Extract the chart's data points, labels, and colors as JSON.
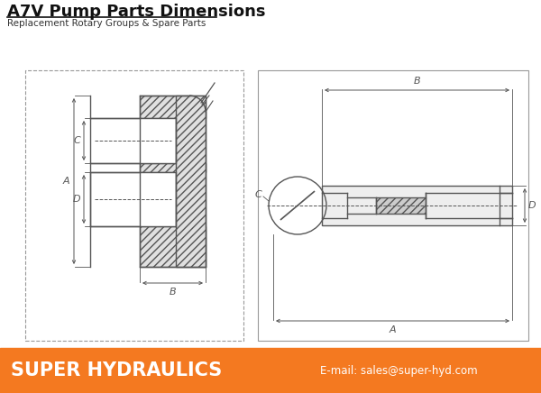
{
  "title": "A7V Pump Parts Dimensions",
  "subtitle": "Replacement Rotary Groups & Spare Parts",
  "bg_color": "#ffffff",
  "orange_color": "#F47920",
  "footer_text": "SUPER HYDRAULICS",
  "footer_email": "E-mail: sales@super-hyd.com",
  "footer_text_color": "#ffffff",
  "dc": "#555555",
  "lc": "#888888"
}
